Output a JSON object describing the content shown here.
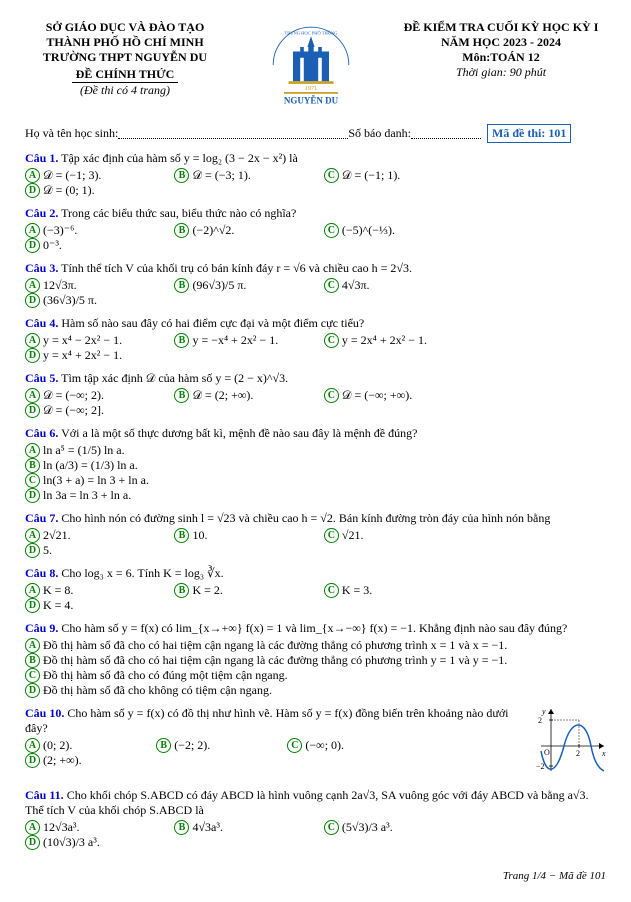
{
  "header": {
    "left": {
      "l1": "SỞ GIÁO DỤC VÀ ĐÀO TẠO",
      "l2": "THÀNH PHỐ HỒ CHÍ MINH",
      "l3": "TRƯỜNG THPT NGUYỄN DU",
      "official": "ĐỀ CHÍNH THỨC",
      "pages": "(Đề thi có 4 trang)"
    },
    "right": {
      "r1": "ĐỀ KIỂM TRA CUỐI KỲ HỌC KỲ I",
      "r2": "NĂM HỌC 2023 - 2024",
      "r3": "Môn:TOÁN 12",
      "r4": "Thời gian: 90 phút"
    },
    "logo": {
      "top_text": "TRƯỜNG TRUNG HỌC PHỔ THÔNG",
      "year": "1971",
      "bottom_text": "NGUYỄN DU",
      "colors": {
        "blue": "#1a5fb4",
        "gold": "#c9a227"
      }
    }
  },
  "student_line": {
    "name_label": "Họ và tên học sinh:",
    "id_label": "Số báo danh:",
    "code_label": "Mã đề thi: 101"
  },
  "questions": [
    {
      "n": "Câu 1.",
      "text": "Tập xác định của hàm số y = log₂ (3 − 2x − x²) là",
      "opts": [
        "𝒟 = (−1; 3).",
        "𝒟 = (−3; 1).",
        "𝒟 = (−1; 1).",
        "𝒟 = (0; 1)."
      ],
      "cols": 4
    },
    {
      "n": "Câu 2.",
      "text": "Trong các biểu thức sau, biểu thức nào có nghĩa?",
      "opts": [
        "(−3)⁻⁶.",
        "(−2)^√2.",
        "(−5)^(−⅓).",
        "0⁻³."
      ],
      "cols": 4
    },
    {
      "n": "Câu 3.",
      "text": "Tính thể tích V của khối trụ có bán kính đáy r = √6 và chiều cao h = 2√3.",
      "opts": [
        "12√3π.",
        "(96√3)/5 π.",
        "4√3π.",
        "(36√3)/5 π."
      ],
      "cols": 4
    },
    {
      "n": "Câu 4.",
      "text": "Hàm số nào sau đây có hai điểm cực đại và một điểm cực tiểu?",
      "opts": [
        "y = x⁴ − 2x² − 1.",
        "y = −x⁴ + 2x² − 1.",
        "y = 2x⁴ + 2x² − 1.",
        "y = x⁴ + 2x² − 1."
      ],
      "cols": 4
    },
    {
      "n": "Câu 5.",
      "text": "Tìm tập xác định 𝒟 của hàm số y = (2 − x)^√3.",
      "opts": [
        "𝒟 = (−∞; 2).",
        "𝒟 = (2; +∞).",
        "𝒟 = (−∞; +∞).",
        "𝒟 = (−∞; 2]."
      ],
      "cols": 4
    },
    {
      "n": "Câu 6.",
      "text": "Với a là một số thực dương bất kì, mệnh đề nào sau đây là mệnh đề đúng?",
      "opts": [
        "ln a⁵ = (1/5) ln a.",
        "ln (a/3) = (1/3) ln a.",
        "ln(3 + a) = ln 3 + ln a.",
        "ln 3a = ln 3 + ln a."
      ],
      "cols": 2
    },
    {
      "n": "Câu 7.",
      "text": "Cho hình nón có đường sinh l = √23 và chiều cao h = √2. Bán kính đường tròn đáy của hình nón bằng",
      "opts": [
        "2√21.",
        "10.",
        "√21.",
        "5."
      ],
      "cols": 4
    },
    {
      "n": "Câu 8.",
      "text": "Cho log₃ x = 6. Tính K = log₃ ∛x.",
      "opts": [
        "K = 8.",
        "K = 2.",
        "K = 3.",
        "K = 4."
      ],
      "cols": 4
    },
    {
      "n": "Câu 9.",
      "text": "Cho hàm số y = f(x) có lim_{x→+∞} f(x) = 1 và lim_{x→−∞} f(x) = −1. Khẳng định nào sau đây đúng?",
      "opts": [
        "Đồ thị hàm số đã cho có hai tiệm cận ngang là các đường thẳng có phương trình x = 1 và x = −1.",
        "Đồ thị hàm số đã cho có hai tiệm cận ngang là các đường thẳng có phương trình y = 1 và y = −1.",
        "Đồ thị hàm số đã cho có đúng một tiệm cận ngang.",
        "Đồ thị hàm số đã cho không có tiệm cận ngang."
      ],
      "cols": 1
    },
    {
      "n": "Câu 10.",
      "text": "Cho hàm số y = f(x) có đồ thị như hình vẽ. Hàm số y = f(x) đồng biến trên khoảng nào dưới đây?",
      "opts": [
        "(0; 2).",
        "(−2; 2).",
        "(−∞; 0).",
        "(2; +∞)."
      ],
      "cols": 4,
      "has_graph": true,
      "graph": {
        "xrange": [
          -0.5,
          3
        ],
        "yrange": [
          -2.5,
          2.5
        ],
        "ticks_x": [
          2
        ],
        "ticks_y": [
          -2,
          2
        ],
        "curve_color": "#1a5fb4"
      }
    },
    {
      "n": "Câu 11.",
      "text": "Cho khối chóp S.ABCD có đáy ABCD là hình vuông cạnh 2a√3, SA vuông góc với đáy ABCD và bằng a√3. Thể tích V của khối chóp S.ABCD là",
      "opts": [
        "12√3a³.",
        "4√3a³.",
        "(5√3)/3 a³.",
        "(10√3)/3 a³."
      ],
      "cols": 4
    }
  ],
  "footer": "Trang 1/4 − Mã đề 101"
}
